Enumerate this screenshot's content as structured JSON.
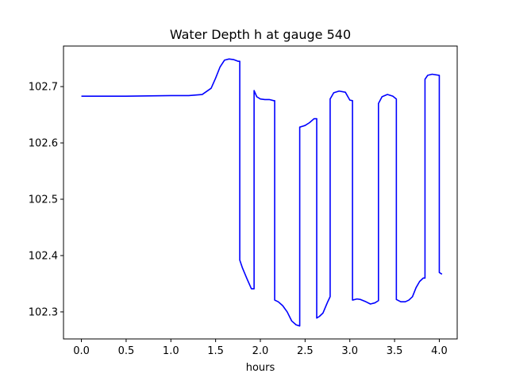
{
  "chart_data": {
    "type": "line",
    "title": "Water Depth h at gauge 540",
    "xlabel": "hours",
    "ylabel": "",
    "xlim": [
      -0.2,
      4.2
    ],
    "ylim": [
      102.252,
      102.772
    ],
    "xticks": [
      0.0,
      0.5,
      1.0,
      1.5,
      2.0,
      2.5,
      3.0,
      3.5,
      4.0
    ],
    "xtick_labels": [
      "0.0",
      "0.5",
      "1.0",
      "1.5",
      "2.0",
      "2.5",
      "3.0",
      "3.5",
      "4.0"
    ],
    "yticks": [
      102.3,
      102.4,
      102.5,
      102.6,
      102.7
    ],
    "ytick_labels": [
      "102.3",
      "102.4",
      "102.5",
      "102.6",
      "102.7"
    ],
    "grid": false,
    "series": [
      {
        "color": "#0000ff",
        "x": [
          0.0,
          0.5,
          1.0,
          1.2,
          1.35,
          1.45,
          1.5,
          1.55,
          1.6,
          1.65,
          1.7,
          1.75,
          1.77,
          1.77,
          1.8,
          1.85,
          1.9,
          1.93,
          1.93,
          1.96,
          2.0,
          2.05,
          2.1,
          2.15,
          2.16,
          2.16,
          2.2,
          2.25,
          2.3,
          2.35,
          2.4,
          2.44,
          2.44,
          2.5,
          2.55,
          2.6,
          2.63,
          2.63,
          2.66,
          2.7,
          2.75,
          2.78,
          2.78,
          2.82,
          2.88,
          2.95,
          3.0,
          3.03,
          3.03,
          3.08,
          3.12,
          3.18,
          3.23,
          3.28,
          3.32,
          3.32,
          3.36,
          3.42,
          3.48,
          3.52,
          3.52,
          3.57,
          3.62,
          3.66,
          3.7,
          3.74,
          3.78,
          3.82,
          3.84,
          3.84,
          3.87,
          3.92,
          4.0,
          4.0,
          4.03
        ],
        "values": [
          102.683,
          102.683,
          102.684,
          102.684,
          102.686,
          102.697,
          102.715,
          102.735,
          102.747,
          102.749,
          102.748,
          102.745,
          102.745,
          102.392,
          102.378,
          102.359,
          102.341,
          102.341,
          102.693,
          102.682,
          102.678,
          102.677,
          102.677,
          102.675,
          102.675,
          102.321,
          102.318,
          102.311,
          102.3,
          102.284,
          102.277,
          102.275,
          102.628,
          102.631,
          102.636,
          102.643,
          102.643,
          102.289,
          102.292,
          102.298,
          102.317,
          102.327,
          102.678,
          102.689,
          102.692,
          102.69,
          102.676,
          102.675,
          102.321,
          102.323,
          102.322,
          102.318,
          102.314,
          102.316,
          102.32,
          102.67,
          102.682,
          102.686,
          102.683,
          102.678,
          102.322,
          102.318,
          102.318,
          102.321,
          102.327,
          102.343,
          102.354,
          102.36,
          102.36,
          102.713,
          102.72,
          102.722,
          102.72,
          102.37,
          102.367
        ]
      }
    ]
  }
}
